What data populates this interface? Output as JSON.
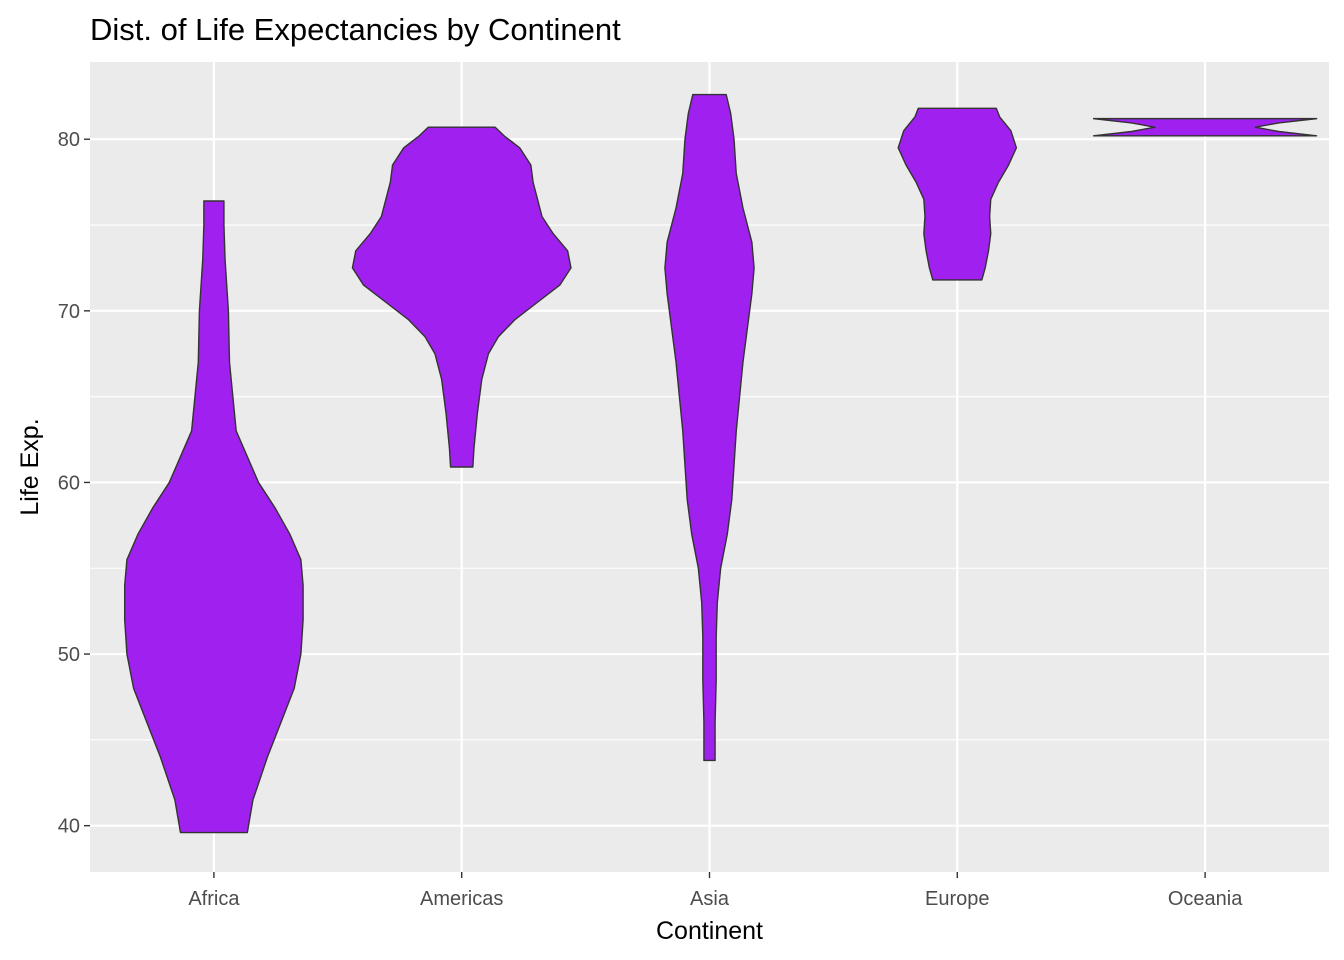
{
  "chart_data": {
    "type": "violin",
    "title": "Dist. of Life Expectancies by Continent",
    "xlabel": "Continent",
    "ylabel": "Life Exp.",
    "categories": [
      "Africa",
      "Americas",
      "Asia",
      "Europe",
      "Oceania"
    ],
    "ylim": [
      37.3,
      84.5
    ],
    "yticks": [
      40,
      50,
      60,
      70,
      80
    ],
    "grid": true,
    "panel_background": "#EBEBEB",
    "grid_color": "#FFFFFF",
    "fill_color": "#A020F0",
    "outline_color": "#333333",
    "series": [
      {
        "category": "Africa",
        "min": 39.6,
        "max": 76.4,
        "profile": [
          [
            39.6,
            0.3
          ],
          [
            41.5,
            0.35
          ],
          [
            44,
            0.48
          ],
          [
            46,
            0.6
          ],
          [
            48,
            0.72
          ],
          [
            50,
            0.78
          ],
          [
            52,
            0.8
          ],
          [
            54,
            0.8
          ],
          [
            55.5,
            0.78
          ],
          [
            57,
            0.68
          ],
          [
            58.5,
            0.55
          ],
          [
            60,
            0.4
          ],
          [
            61.5,
            0.3
          ],
          [
            63,
            0.2
          ],
          [
            65,
            0.17
          ],
          [
            67,
            0.14
          ],
          [
            70,
            0.13
          ],
          [
            73,
            0.1
          ],
          [
            75,
            0.09
          ],
          [
            76.4,
            0.09
          ]
        ]
      },
      {
        "category": "Americas",
        "min": 60.9,
        "max": 80.7,
        "profile": [
          [
            60.9,
            0.1
          ],
          [
            62,
            0.11
          ],
          [
            64,
            0.14
          ],
          [
            66,
            0.18
          ],
          [
            67.5,
            0.24
          ],
          [
            68.5,
            0.33
          ],
          [
            69.5,
            0.48
          ],
          [
            70.5,
            0.68
          ],
          [
            71.5,
            0.88
          ],
          [
            72.5,
            0.98
          ],
          [
            73.5,
            0.95
          ],
          [
            74.5,
            0.82
          ],
          [
            75.5,
            0.72
          ],
          [
            76.5,
            0.68
          ],
          [
            77.5,
            0.64
          ],
          [
            78.5,
            0.62
          ],
          [
            79.5,
            0.52
          ],
          [
            80.2,
            0.38
          ],
          [
            80.7,
            0.3
          ]
        ]
      },
      {
        "category": "Asia",
        "min": 43.8,
        "max": 82.6,
        "profile": [
          [
            43.8,
            0.05
          ],
          [
            46,
            0.05
          ],
          [
            48.5,
            0.06
          ],
          [
            51,
            0.06
          ],
          [
            53,
            0.07
          ],
          [
            55,
            0.1
          ],
          [
            57,
            0.16
          ],
          [
            59,
            0.2
          ],
          [
            61,
            0.22
          ],
          [
            63,
            0.24
          ],
          [
            65,
            0.27
          ],
          [
            67,
            0.3
          ],
          [
            69,
            0.34
          ],
          [
            71,
            0.38
          ],
          [
            72.5,
            0.4
          ],
          [
            74,
            0.38
          ],
          [
            76,
            0.3
          ],
          [
            78,
            0.24
          ],
          [
            80,
            0.22
          ],
          [
            81.5,
            0.19
          ],
          [
            82.6,
            0.15
          ]
        ]
      },
      {
        "category": "Europe",
        "min": 71.8,
        "max": 81.8,
        "profile": [
          [
            71.8,
            0.22
          ],
          [
            72.5,
            0.25
          ],
          [
            73.5,
            0.28
          ],
          [
            74.5,
            0.3
          ],
          [
            75.5,
            0.29
          ],
          [
            76.5,
            0.3
          ],
          [
            77.5,
            0.37
          ],
          [
            78.5,
            0.46
          ],
          [
            79.5,
            0.53
          ],
          [
            80.5,
            0.48
          ],
          [
            81.3,
            0.38
          ],
          [
            81.8,
            0.35
          ]
        ]
      },
      {
        "category": "Oceania",
        "min": 80.2,
        "max": 81.2,
        "profile": [
          [
            80.2,
            1.0
          ],
          [
            80.45,
            0.66
          ],
          [
            80.7,
            0.45
          ],
          [
            80.95,
            0.66
          ],
          [
            81.2,
            1.0
          ]
        ]
      }
    ]
  }
}
